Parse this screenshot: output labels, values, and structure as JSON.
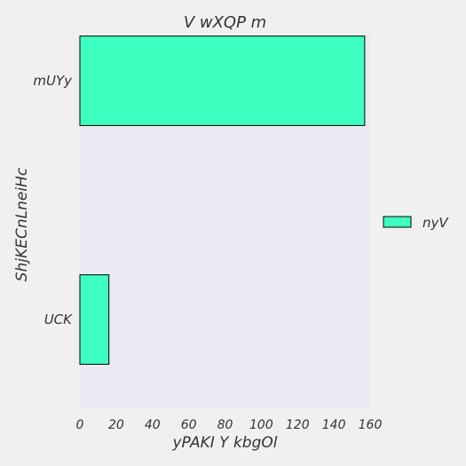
{
  "chart_data": {
    "type": "bar",
    "orientation": "horizontal",
    "title": "V wXQP m",
    "xlabel": "yPAKI Y kbgOl",
    "ylabel": "ShjKECnLneiHc",
    "categories": [
      "mUYy",
      "UCK"
    ],
    "series": [
      {
        "name": "nyV",
        "values": [
          157,
          16
        ]
      }
    ],
    "xlim": [
      0,
      160
    ],
    "xticks": [
      0,
      20,
      40,
      60,
      80,
      100,
      120,
      140,
      160
    ],
    "grid": false,
    "legend": "right",
    "colors": {
      "bar": "#3dffbf",
      "plot_background": "#eaeaf2",
      "figure_background": "#f0f0f0",
      "bar_edge": "#000000",
      "text": "#333333"
    }
  }
}
